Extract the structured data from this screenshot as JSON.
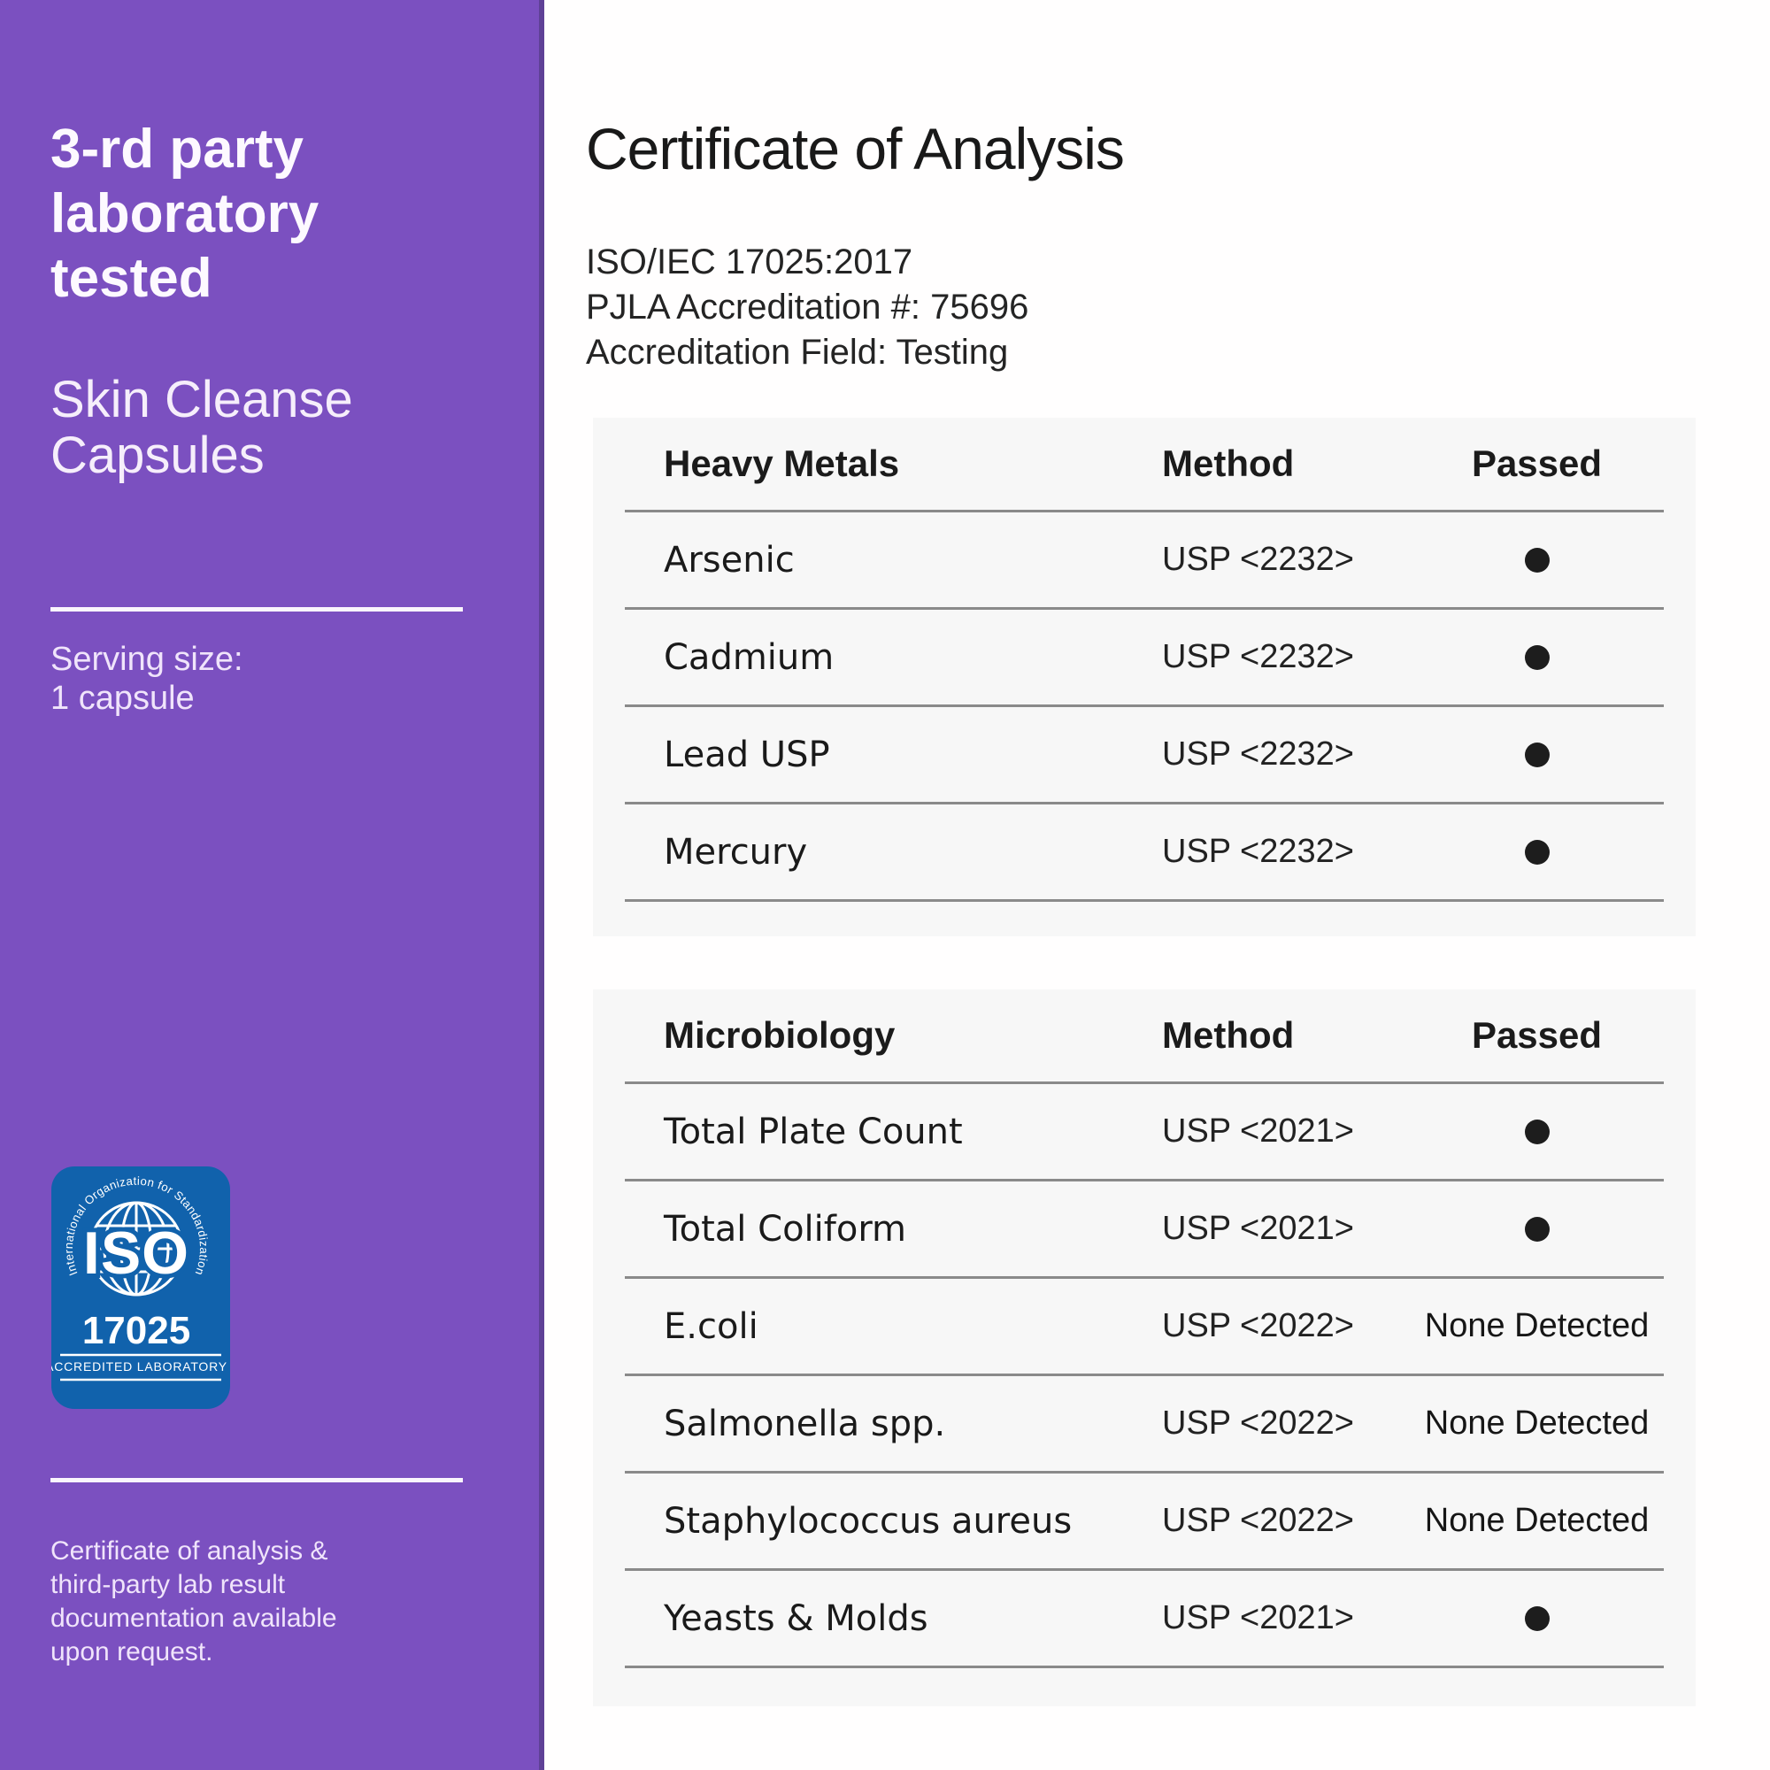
{
  "sidebar": {
    "headline_lines": [
      "3-rd party",
      "laboratory",
      "tested"
    ],
    "product_lines": [
      "Skin Cleanse",
      "Capsules"
    ],
    "serving_label": "Serving size:",
    "serving_value": "1 capsule",
    "badge": {
      "arc_text": "International Organization for Standardization",
      "iso_label": "ISO",
      "number": "17025",
      "accredited_label": "ACCREDITED LABORATORY"
    },
    "footnote": "Certificate of analysis & third-party lab result documentation available upon request.",
    "colors": {
      "background": "#7B50C0",
      "edge": "#5F4196",
      "badge_blue": "#1162AC",
      "text": "#F6EEFB"
    }
  },
  "main": {
    "title": "Certificate of Analysis",
    "meta": [
      "ISO/IEC 17025:2017",
      "PJLA Accreditation #: 75696",
      "Accreditation Field: Testing"
    ],
    "colors": {
      "card_background": "#F7F7F7",
      "divider": "#8A8A8A",
      "text": "#1A1A1A"
    },
    "tables": [
      {
        "header": {
          "name": "Heavy Metals",
          "method": "Method",
          "passed": "Passed"
        },
        "rows": [
          {
            "name": "Arsenic",
            "method": "USP <2232>",
            "passed": "dot"
          },
          {
            "name": "Cadmium",
            "method": "USP <2232>",
            "passed": "dot"
          },
          {
            "name": "Lead USP",
            "method": "USP <2232>",
            "passed": "dot"
          },
          {
            "name": "Mercury",
            "method": "USP <2232>",
            "passed": "dot"
          }
        ]
      },
      {
        "header": {
          "name": "Microbiology",
          "method": "Method",
          "passed": "Passed"
        },
        "rows": [
          {
            "name": "Total Plate Count",
            "method": "USP <2021>",
            "passed": "dot"
          },
          {
            "name": "Total Coliform",
            "method": "USP <2021>",
            "passed": "dot"
          },
          {
            "name": "E.coli",
            "method": "USP <2022>",
            "passed": "None Detected"
          },
          {
            "name": "Salmonella spp.",
            "method": "USP <2022>",
            "passed": "None Detected"
          },
          {
            "name": "Staphylococcus aureus",
            "method": "USP <2022>",
            "passed": "None Detected"
          },
          {
            "name": "Yeasts & Molds",
            "method": "USP <2021>",
            "passed": "dot"
          }
        ]
      }
    ]
  }
}
